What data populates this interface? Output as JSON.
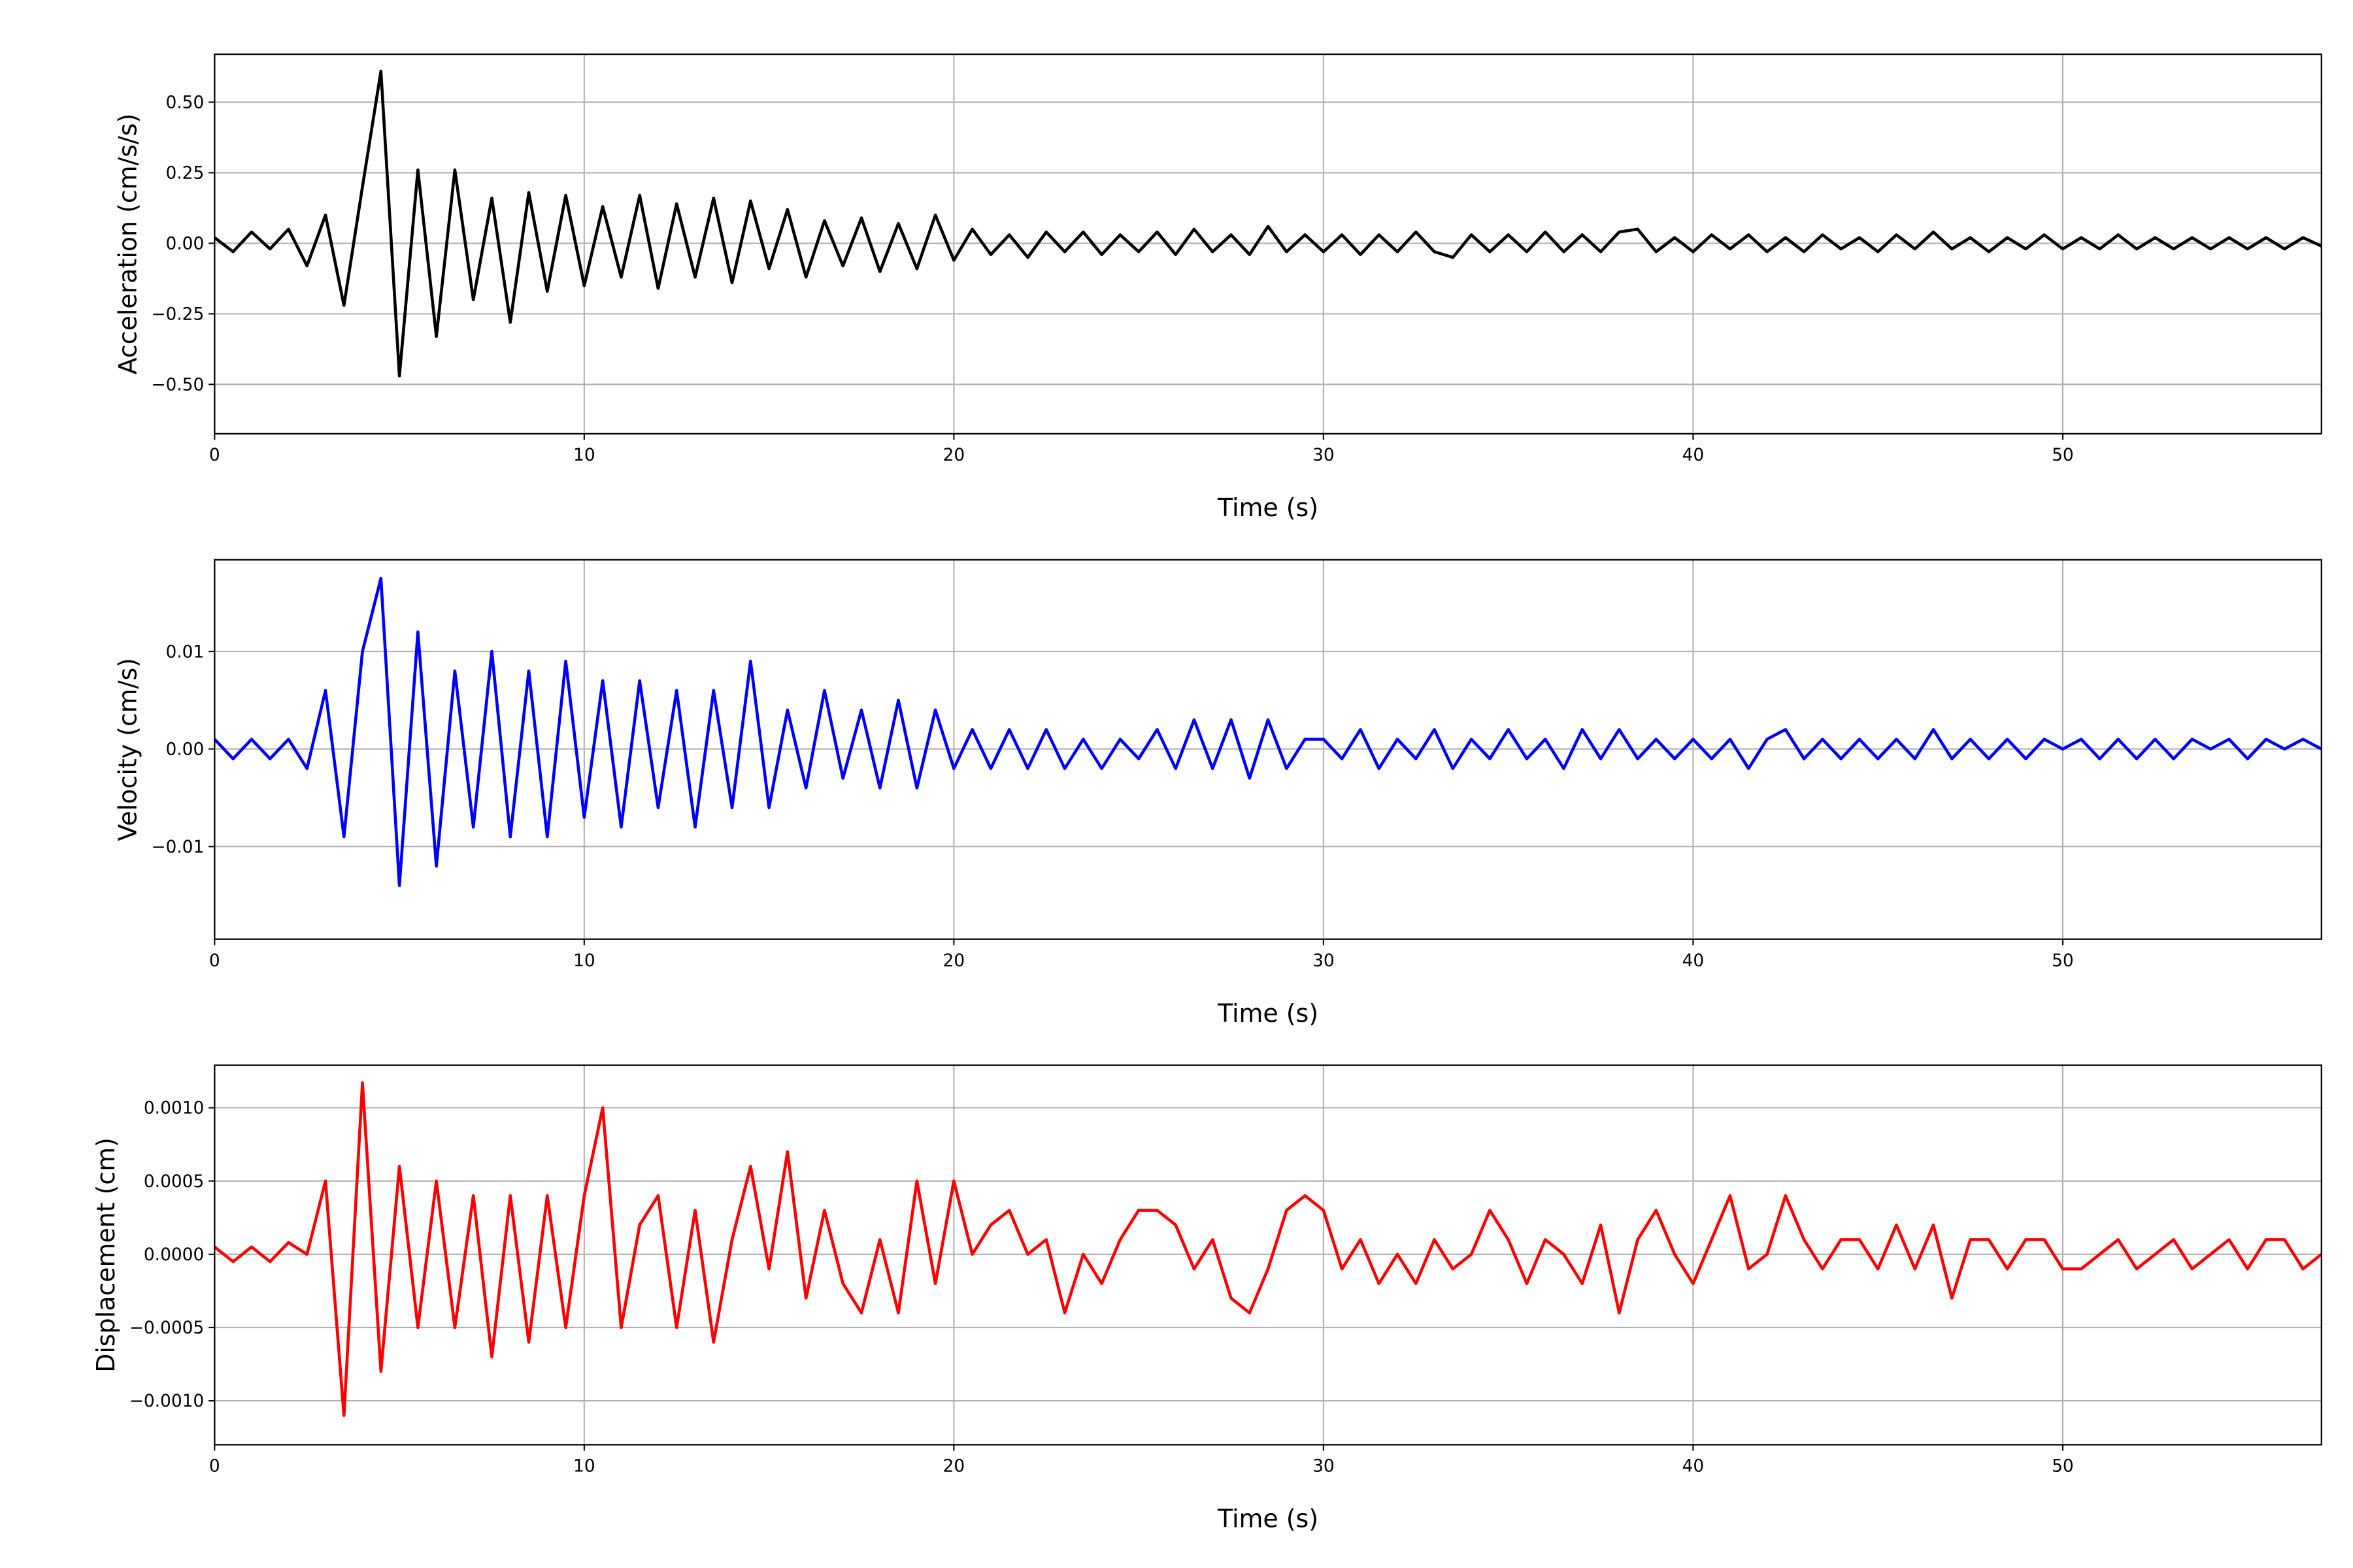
{
  "chart_data": [
    {
      "type": "line",
      "xlabel": "Time (s)",
      "ylabel": "Acceleration (cm/s/s)",
      "color": "#000000",
      "grid": true,
      "xlim": [
        0,
        57
      ],
      "ylim": [
        -0.675,
        0.67
      ],
      "xticks": [
        0,
        10,
        20,
        30,
        40,
        50
      ],
      "yticks": [
        {
          "value": -0.5,
          "label": "−0.50"
        },
        {
          "value": -0.25,
          "label": "−0.25"
        },
        {
          "value": 0,
          "label": "0.00"
        },
        {
          "value": 0.25,
          "label": "0.25"
        },
        {
          "value": 0.5,
          "label": "0.50"
        }
      ],
      "x": [
        0,
        0.5,
        1,
        1.5,
        2,
        2.5,
        3,
        3.5,
        4,
        4.5,
        5,
        5.5,
        6,
        6.5,
        7,
        7.5,
        8,
        8.5,
        9,
        9.5,
        10,
        10.5,
        11,
        11.5,
        12,
        12.5,
        13,
        13.5,
        14,
        14.5,
        15,
        15.5,
        16,
        16.5,
        17,
        17.5,
        18,
        18.5,
        19,
        19.5,
        20,
        20.5,
        21,
        21.5,
        22,
        22.5,
        23,
        23.5,
        24,
        24.5,
        25,
        25.5,
        26,
        26.5,
        27,
        27.5,
        28,
        28.5,
        29,
        29.5,
        30,
        30.5,
        31,
        31.5,
        32,
        32.5,
        33,
        33.5,
        34,
        34.5,
        35,
        35.5,
        36,
        36.5,
        37,
        37.5,
        38,
        38.5,
        39,
        39.5,
        40,
        40.5,
        41,
        41.5,
        42,
        42.5,
        43,
        43.5,
        44,
        44.5,
        45,
        45.5,
        46,
        46.5,
        47,
        47.5,
        48,
        48.5,
        49,
        49.5,
        50,
        50.5,
        51,
        51.5,
        52,
        52.5,
        53,
        53.5,
        54,
        54.5,
        55,
        55.5,
        56,
        56.5,
        57
      ],
      "values": [
        0.02,
        -0.03,
        0.04,
        -0.02,
        0.05,
        -0.08,
        0.1,
        -0.22,
        0.2,
        0.61,
        -0.47,
        0.26,
        -0.33,
        0.26,
        -0.2,
        0.16,
        -0.28,
        0.18,
        -0.17,
        0.17,
        -0.15,
        0.13,
        -0.12,
        0.17,
        -0.16,
        0.14,
        -0.12,
        0.16,
        -0.14,
        0.15,
        -0.09,
        0.12,
        -0.12,
        0.08,
        -0.08,
        0.09,
        -0.1,
        0.07,
        -0.09,
        0.1,
        -0.06,
        0.05,
        -0.04,
        0.03,
        -0.05,
        0.04,
        -0.03,
        0.04,
        -0.04,
        0.03,
        -0.03,
        0.04,
        -0.04,
        0.05,
        -0.03,
        0.03,
        -0.04,
        0.06,
        -0.03,
        0.03,
        -0.03,
        0.03,
        -0.04,
        0.03,
        -0.03,
        0.04,
        -0.03,
        -0.05,
        0.03,
        -0.03,
        0.03,
        -0.03,
        0.04,
        -0.03,
        0.03,
        -0.03,
        0.04,
        0.05,
        -0.03,
        0.02,
        -0.03,
        0.03,
        -0.02,
        0.03,
        -0.03,
        0.02,
        -0.03,
        0.03,
        -0.02,
        0.02,
        -0.03,
        0.03,
        -0.02,
        0.04,
        -0.02,
        0.02,
        -0.03,
        0.02,
        -0.02,
        0.03,
        -0.02,
        0.02,
        -0.02,
        0.03,
        -0.02,
        0.02,
        -0.02,
        0.02,
        -0.02,
        0.02,
        -0.02,
        0.02,
        -0.02,
        0.02,
        -0.01
      ]
    },
    {
      "type": "line",
      "xlabel": "Time (s)",
      "ylabel": "Velocity (cm/s)",
      "color": "#0000ff",
      "grid": true,
      "xlim": [
        0,
        57
      ],
      "ylim": [
        -0.0195,
        0.0194
      ],
      "xticks": [
        0,
        10,
        20,
        30,
        40,
        50
      ],
      "yticks": [
        {
          "value": -0.01,
          "label": "−0.01"
        },
        {
          "value": 0,
          "label": "0.00"
        },
        {
          "value": 0.01,
          "label": "0.01"
        }
      ],
      "x": [
        0,
        0.5,
        1,
        1.5,
        2,
        2.5,
        3,
        3.5,
        4,
        4.5,
        5,
        5.5,
        6,
        6.5,
        7,
        7.5,
        8,
        8.5,
        9,
        9.5,
        10,
        10.5,
        11,
        11.5,
        12,
        12.5,
        13,
        13.5,
        14,
        14.5,
        15,
        15.5,
        16,
        16.5,
        17,
        17.5,
        18,
        18.5,
        19,
        19.5,
        20,
        20.5,
        21,
        21.5,
        22,
        22.5,
        23,
        23.5,
        24,
        24.5,
        25,
        25.5,
        26,
        26.5,
        27,
        27.5,
        28,
        28.5,
        29,
        29.5,
        30,
        30.5,
        31,
        31.5,
        32,
        32.5,
        33,
        33.5,
        34,
        34.5,
        35,
        35.5,
        36,
        36.5,
        37,
        37.5,
        38,
        38.5,
        39,
        39.5,
        40,
        40.5,
        41,
        41.5,
        42,
        42.5,
        43,
        43.5,
        44,
        44.5,
        45,
        45.5,
        46,
        46.5,
        47,
        47.5,
        48,
        48.5,
        49,
        49.5,
        50,
        50.5,
        51,
        51.5,
        52,
        52.5,
        53,
        53.5,
        54,
        54.5,
        55,
        55.5,
        56,
        56.5,
        57
      ],
      "values": [
        0.001,
        -0.001,
        0.001,
        -0.001,
        0.001,
        -0.002,
        0.006,
        -0.009,
        0.01,
        0.0175,
        -0.014,
        0.012,
        -0.012,
        0.008,
        -0.008,
        0.01,
        -0.009,
        0.008,
        -0.009,
        0.009,
        -0.007,
        0.007,
        -0.008,
        0.007,
        -0.006,
        0.006,
        -0.008,
        0.006,
        -0.006,
        0.009,
        -0.006,
        0.004,
        -0.004,
        0.006,
        -0.003,
        0.004,
        -0.004,
        0.005,
        -0.004,
        0.004,
        -0.002,
        0.002,
        -0.002,
        0.002,
        -0.002,
        0.002,
        -0.002,
        0.001,
        -0.002,
        0.001,
        -0.001,
        0.002,
        -0.002,
        0.003,
        -0.002,
        0.003,
        -0.003,
        0.003,
        -0.002,
        0.001,
        0.001,
        -0.001,
        0.002,
        -0.002,
        0.001,
        -0.001,
        0.002,
        -0.002,
        0.001,
        -0.001,
        0.002,
        -0.001,
        0.001,
        -0.002,
        0.002,
        -0.001,
        0.002,
        -0.001,
        0.001,
        -0.001,
        0.001,
        -0.001,
        0.001,
        -0.002,
        0.001,
        0.002,
        -0.001,
        0.001,
        -0.001,
        0.001,
        -0.001,
        0.001,
        -0.001,
        0.002,
        -0.001,
        0.001,
        -0.001,
        0.001,
        -0.001,
        0.001,
        0,
        0.001,
        -0.001,
        0.001,
        -0.001,
        0.001,
        -0.001,
        0.001,
        0,
        0.001,
        -0.001,
        0.001,
        0,
        0.001,
        0
      ]
    },
    {
      "type": "line",
      "xlabel": "Time (s)",
      "ylabel": "Displacement (cm)",
      "color": "#ff0000",
      "grid": true,
      "xlim": [
        0,
        57
      ],
      "ylim": [
        -0.0013,
        0.00129
      ],
      "xticks": [
        0,
        10,
        20,
        30,
        40,
        50
      ],
      "yticks": [
        {
          "value": -0.001,
          "label": "−0.0010"
        },
        {
          "value": -0.0005,
          "label": "−0.0005"
        },
        {
          "value": 0,
          "label": "0.0000"
        },
        {
          "value": 0.0005,
          "label": "0.0005"
        },
        {
          "value": 0.001,
          "label": "0.0010"
        }
      ],
      "x": [
        0,
        0.5,
        1,
        1.5,
        2,
        2.5,
        3,
        3.5,
        4,
        4.5,
        5,
        5.5,
        6,
        6.5,
        7,
        7.5,
        8,
        8.5,
        9,
        9.5,
        10,
        10.5,
        11,
        11.5,
        12,
        12.5,
        13,
        13.5,
        14,
        14.5,
        15,
        15.5,
        16,
        16.5,
        17,
        17.5,
        18,
        18.5,
        19,
        19.5,
        20,
        20.5,
        21,
        21.5,
        22,
        22.5,
        23,
        23.5,
        24,
        24.5,
        25,
        25.5,
        26,
        26.5,
        27,
        27.5,
        28,
        28.5,
        29,
        29.5,
        30,
        30.5,
        31,
        31.5,
        32,
        32.5,
        33,
        33.5,
        34,
        34.5,
        35,
        35.5,
        36,
        36.5,
        37,
        37.5,
        38,
        38.5,
        39,
        39.5,
        40,
        40.5,
        41,
        41.5,
        42,
        42.5,
        43,
        43.5,
        44,
        44.5,
        45,
        45.5,
        46,
        46.5,
        47,
        47.5,
        48,
        48.5,
        49,
        49.5,
        50,
        50.5,
        51,
        51.5,
        52,
        52.5,
        53,
        53.5,
        54,
        54.5,
        55,
        55.5,
        56,
        56.5,
        57
      ],
      "values": [
        5e-05,
        -5e-05,
        5e-05,
        -5e-05,
        8e-05,
        0,
        0.0005,
        -0.0011,
        0.00117,
        -0.0008,
        0.0006,
        -0.0005,
        0.0005,
        -0.0005,
        0.0004,
        -0.0007,
        0.0004,
        -0.0006,
        0.0004,
        -0.0005,
        0.0004,
        0.001,
        -0.0005,
        0.0002,
        0.0004,
        -0.0005,
        0.0003,
        -0.0006,
        0.0001,
        0.0006,
        -0.0001,
        0.0007,
        -0.0003,
        0.0003,
        -0.0002,
        -0.0004,
        0.0001,
        -0.0004,
        0.0005,
        -0.0002,
        0.0005,
        0,
        0.0002,
        0.0003,
        0,
        0.0001,
        -0.0004,
        0,
        -0.0002,
        0.0001,
        0.0003,
        0.0003,
        0.0002,
        -0.0001,
        0.0001,
        -0.0003,
        -0.0004,
        -0.0001,
        0.0003,
        0.0004,
        0.0003,
        -0.0001,
        0.0001,
        -0.0002,
        0,
        -0.0002,
        0.0001,
        -0.0001,
        0,
        0.0003,
        0.0001,
        -0.0002,
        0.0001,
        0,
        -0.0002,
        0.0002,
        -0.0004,
        0.0001,
        0.0003,
        0,
        -0.0002,
        0.0001,
        0.0004,
        -0.0001,
        0,
        0.0004,
        0.0001,
        -0.0001,
        0.0001,
        0.0001,
        -0.0001,
        0.0002,
        -0.0001,
        0.0002,
        -0.0003,
        0.0001,
        0.0001,
        -0.0001,
        0.0001,
        0.0001,
        -0.0001,
        -0.0001,
        0,
        0.0001,
        -0.0001,
        0,
        0.0001,
        -0.0001,
        0,
        0.0001,
        -0.0001,
        0.0001,
        0.0001,
        -0.0001,
        0
      ]
    }
  ]
}
